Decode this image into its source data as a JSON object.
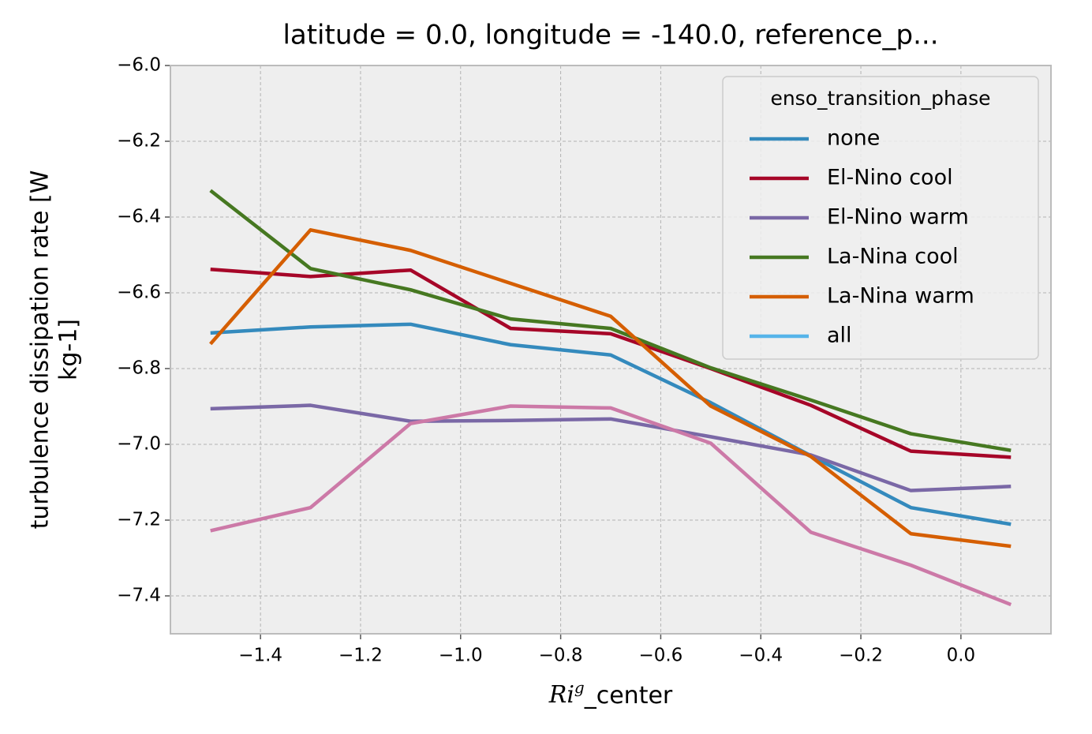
{
  "chart_data": {
    "type": "line",
    "title": "latitude = 0.0, longitude = -140.0, reference_p...",
    "xlabel": {
      "base": "Ri",
      "sup": "g",
      "rest": "_center"
    },
    "ylabel": [
      "turbulence dissipation rate [W",
      "kg-1]"
    ],
    "x": [
      -1.5,
      -1.3,
      -1.1,
      -0.9,
      -0.7,
      -0.5,
      -0.3,
      -0.1,
      0.1
    ],
    "xlim": [
      -1.58,
      0.18
    ],
    "ylim": [
      -7.5,
      -6.0
    ],
    "xticks": [
      {
        "value": -1.4,
        "label": "−1.4"
      },
      {
        "value": -1.2,
        "label": "−1.2"
      },
      {
        "value": -1.0,
        "label": "−1.0"
      },
      {
        "value": -0.8,
        "label": "−0.8"
      },
      {
        "value": -0.6,
        "label": "−0.6"
      },
      {
        "value": -0.4,
        "label": "−0.4"
      },
      {
        "value": -0.2,
        "label": "−0.2"
      },
      {
        "value": 0,
        "label": "0.0"
      }
    ],
    "yticks": [
      {
        "value": -7.4,
        "label": "−7.4"
      },
      {
        "value": -7.2,
        "label": "−7.2"
      },
      {
        "value": -7.0,
        "label": "−7.0"
      },
      {
        "value": -6.8,
        "label": "−6.8"
      },
      {
        "value": -6.6,
        "label": "−6.6"
      },
      {
        "value": -6.4,
        "label": "−6.4"
      },
      {
        "value": -6.2,
        "label": "−6.2"
      },
      {
        "value": -6.0,
        "label": "−6.0"
      }
    ],
    "grid": true,
    "legend_title": "enso_transition_phase",
    "legend_position": "upper right",
    "series": [
      {
        "name": "none",
        "color": "#348ABD",
        "values": [
          -6.706,
          -6.69,
          -6.683,
          -6.737,
          -6.764,
          -6.89,
          -7.03,
          -7.167,
          -7.211
        ]
      },
      {
        "name": "El-Nino cool",
        "color": "#A60628",
        "values": [
          -6.538,
          -6.557,
          -6.54,
          -6.694,
          -6.708,
          -6.8,
          -6.897,
          -7.018,
          -7.034
        ]
      },
      {
        "name": "El-Nino warm",
        "color": "#7A68A6",
        "values": [
          -6.906,
          -6.897,
          -6.939,
          -6.937,
          -6.933,
          -6.98,
          -7.028,
          -7.122,
          -7.111
        ]
      },
      {
        "name": "La-Nina cool",
        "color": "#467821",
        "values": [
          -6.33,
          -6.536,
          -6.592,
          -6.669,
          -6.694,
          -6.798,
          -6.883,
          -6.972,
          -7.016
        ]
      },
      {
        "name": "La-Nina warm",
        "color": "#D55E00",
        "values": [
          -6.735,
          -6.434,
          -6.488,
          -6.575,
          -6.662,
          -6.899,
          -7.032,
          -7.236,
          -7.269
        ]
      },
      {
        "name": "all",
        "color": "#CC79A7",
        "legend_color": "#56B4E9",
        "values": [
          -7.228,
          -7.167,
          -6.945,
          -6.899,
          -6.904,
          -6.997,
          -7.232,
          -7.319,
          -7.423
        ]
      }
    ]
  }
}
